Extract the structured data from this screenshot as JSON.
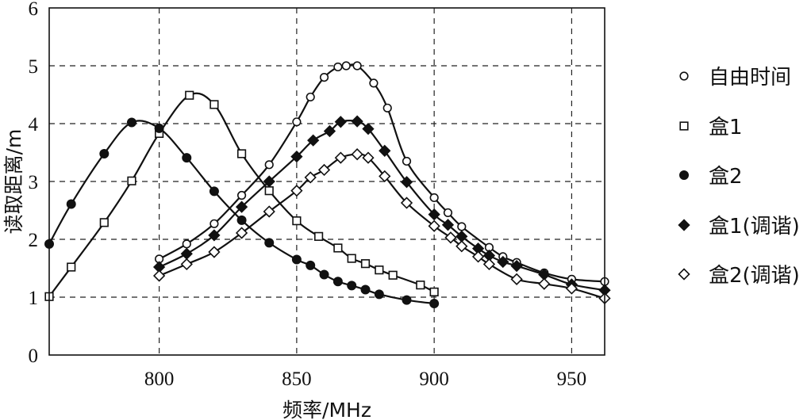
{
  "chart_data": {
    "type": "line",
    "xlabel": "频率/MHz",
    "ylabel": "读取距离/m",
    "xlim": [
      760,
      962
    ],
    "ylim": [
      0,
      6
    ],
    "xticks": [
      800,
      850,
      900,
      950
    ],
    "yticks": [
      0,
      1,
      2,
      3,
      4,
      5,
      6
    ],
    "grid": true,
    "legend_position": "right",
    "series": [
      {
        "name": "自由时间",
        "marker": "circle-open",
        "x": [
          800,
          810,
          820,
          830,
          840,
          850,
          855,
          860,
          865,
          868,
          872,
          878,
          883,
          890,
          900,
          905,
          910,
          920,
          925,
          930,
          940,
          950,
          962
        ],
        "y": [
          1.66,
          1.92,
          2.27,
          2.76,
          3.29,
          4.03,
          4.46,
          4.8,
          4.98,
          5.0,
          5.0,
          4.7,
          4.27,
          3.35,
          2.72,
          2.46,
          2.22,
          1.86,
          1.7,
          1.6,
          1.42,
          1.31,
          1.27
        ]
      },
      {
        "name": "盒1",
        "marker": "square-open",
        "x": [
          760,
          768,
          780,
          790,
          800,
          811,
          820,
          830,
          840,
          850,
          858,
          865,
          870,
          875,
          880,
          885,
          895,
          900
        ],
        "y": [
          1.01,
          1.52,
          2.29,
          3.01,
          3.83,
          4.49,
          4.33,
          3.48,
          2.84,
          2.32,
          2.05,
          1.85,
          1.67,
          1.58,
          1.47,
          1.38,
          1.21,
          1.09
        ]
      },
      {
        "name": "盒2",
        "marker": "circle-filled",
        "x": [
          760,
          768,
          780,
          790,
          800,
          810,
          820,
          830,
          840,
          850,
          855,
          860,
          865,
          870,
          875,
          880,
          890,
          900
        ],
        "y": [
          1.92,
          2.61,
          3.48,
          4.02,
          3.92,
          3.41,
          2.83,
          2.33,
          1.94,
          1.65,
          1.55,
          1.39,
          1.27,
          1.2,
          1.13,
          1.05,
          0.95,
          0.89
        ]
      },
      {
        "name": "盒1(调谐)",
        "marker": "diamond-filled",
        "x": [
          800,
          810,
          820,
          830,
          840,
          850,
          856,
          862,
          866,
          872,
          876,
          882,
          890,
          900,
          905,
          910,
          916,
          920,
          925,
          930,
          940,
          950,
          962
        ],
        "y": [
          1.52,
          1.75,
          2.07,
          2.56,
          3.0,
          3.43,
          3.71,
          3.87,
          4.03,
          4.04,
          3.91,
          3.53,
          2.99,
          2.43,
          2.25,
          2.05,
          1.84,
          1.72,
          1.61,
          1.54,
          1.39,
          1.22,
          1.12
        ]
      },
      {
        "name": "盒2(调谐)",
        "marker": "diamond-open",
        "x": [
          800,
          810,
          820,
          830,
          840,
          850,
          855,
          860,
          866,
          872,
          876,
          882,
          890,
          900,
          906,
          910,
          916,
          920,
          930,
          940,
          950,
          962
        ],
        "y": [
          1.37,
          1.57,
          1.78,
          2.11,
          2.48,
          2.84,
          3.07,
          3.2,
          3.41,
          3.47,
          3.41,
          3.09,
          2.63,
          2.23,
          2.03,
          1.88,
          1.7,
          1.57,
          1.31,
          1.23,
          1.15,
          0.98
        ]
      }
    ]
  }
}
